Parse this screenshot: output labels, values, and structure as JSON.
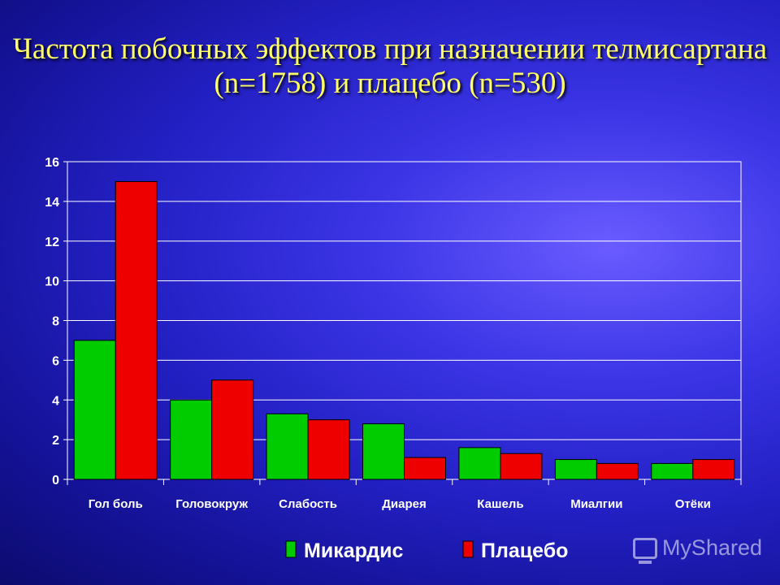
{
  "title": "Частота побочных эффектов при назначении телмисартана (n=1758) и плацебо (n=530)",
  "watermark": "MyShared",
  "chart_data": {
    "type": "bar",
    "categories": [
      "Гол боль",
      "Головокруж",
      "Слабость",
      "Диарея",
      "Кашель",
      "Миалгии",
      "Отёки"
    ],
    "series": [
      {
        "name": "Микардис",
        "color": "#00cc00",
        "values": [
          7,
          4,
          3.3,
          2.8,
          1.6,
          1.0,
          0.8
        ]
      },
      {
        "name": "Плацебо",
        "color": "#ee0000",
        "values": [
          15,
          5,
          3,
          1.1,
          1.3,
          0.8,
          1.0
        ]
      }
    ],
    "ylim": [
      0,
      16
    ],
    "yticks": [
      0,
      2,
      4,
      6,
      8,
      10,
      12,
      14,
      16
    ],
    "grid": true,
    "legend": "bottom",
    "colors": {
      "tick_text": "#ffffff",
      "grid": "#ffffff",
      "label_text": "#ffffff"
    }
  }
}
